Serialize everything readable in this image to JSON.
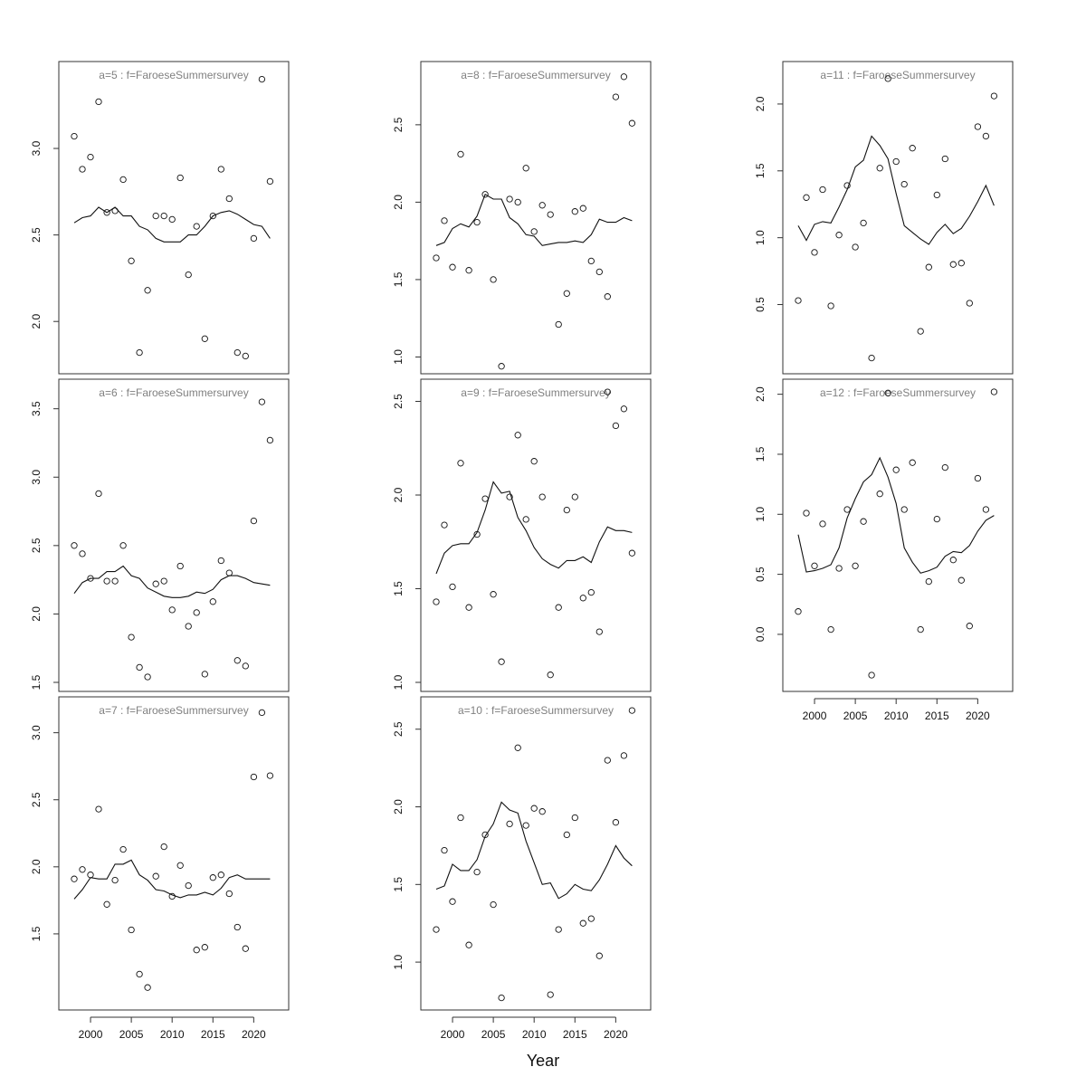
{
  "chart_data": {
    "type": "scatter",
    "xlabel": "Year",
    "x": [
      1998,
      1999,
      2000,
      2001,
      2002,
      2003,
      2004,
      2005,
      2006,
      2007,
      2008,
      2009,
      2010,
      2011,
      2012,
      2013,
      2014,
      2015,
      2016,
      2017,
      2018,
      2019,
      2020,
      2021,
      2022
    ],
    "xticks": [
      2000,
      2005,
      2010,
      2015,
      2020
    ],
    "panels": [
      {
        "title": "a=5  :  f=FaroeseSummersurvey",
        "ylim": [
          1.75,
          3.45
        ],
        "yticks": [
          "2.0",
          "2.5",
          "3.0"
        ],
        "observed": [
          3.07,
          2.88,
          2.95,
          3.27,
          2.63,
          2.64,
          2.82,
          2.35,
          1.82,
          2.18,
          2.61,
          2.61,
          2.59,
          2.83,
          2.27,
          2.55,
          1.9,
          2.61,
          2.88,
          2.71,
          1.82,
          1.8,
          2.48,
          3.4,
          2.81
        ],
        "fitted": [
          2.57,
          2.6,
          2.61,
          2.66,
          2.63,
          2.66,
          2.61,
          2.61,
          2.55,
          2.53,
          2.48,
          2.46,
          2.46,
          2.46,
          2.5,
          2.5,
          2.55,
          2.61,
          2.63,
          2.64,
          2.62,
          2.59,
          2.56,
          2.55,
          2.48
        ]
      },
      {
        "title": "a=6  :  f=FaroeseSummersurvey",
        "ylim": [
          1.5,
          3.65
        ],
        "yticks": [
          "1.5",
          "2.0",
          "2.5",
          "3.0",
          "3.5"
        ],
        "observed": [
          2.5,
          2.44,
          2.26,
          2.88,
          2.24,
          2.24,
          2.5,
          1.83,
          1.61,
          1.54,
          2.22,
          2.24,
          2.03,
          2.35,
          1.91,
          2.01,
          1.56,
          2.09,
          2.39,
          2.3,
          1.66,
          1.62,
          2.68,
          3.55,
          3.27
        ],
        "fitted": [
          2.15,
          2.23,
          2.26,
          2.26,
          2.31,
          2.31,
          2.35,
          2.28,
          2.26,
          2.19,
          2.16,
          2.13,
          2.12,
          2.12,
          2.13,
          2.16,
          2.15,
          2.18,
          2.25,
          2.28,
          2.28,
          2.26,
          2.23,
          2.22,
          2.21
        ]
      },
      {
        "title": "a=7  :  f=FaroeseSummersurvey",
        "ylim": [
          1.0,
          3.2
        ],
        "yticks": [
          "1.5",
          "2.0",
          "2.5",
          "3.0"
        ],
        "observed": [
          1.91,
          1.98,
          1.94,
          2.43,
          1.72,
          1.9,
          2.13,
          1.53,
          1.2,
          1.1,
          1.93,
          2.15,
          1.78,
          2.01,
          1.86,
          1.38,
          1.4,
          1.92,
          1.94,
          1.8,
          1.55,
          1.39,
          2.67,
          3.15,
          2.68
        ],
        "fitted": [
          1.76,
          1.83,
          1.92,
          1.91,
          1.91,
          2.02,
          2.02,
          2.05,
          1.94,
          1.9,
          1.83,
          1.82,
          1.79,
          1.77,
          1.79,
          1.79,
          1.81,
          1.79,
          1.84,
          1.92,
          1.94,
          1.91,
          1.91,
          1.91,
          1.91
        ]
      },
      {
        "title": "a=8  :  f=FaroeseSummersurvey",
        "ylim": [
          0.95,
          2.85
        ],
        "yticks": [
          "1.0",
          "1.5",
          "2.0",
          "2.5"
        ],
        "observed": [
          1.64,
          1.88,
          1.58,
          2.31,
          1.56,
          1.87,
          2.05,
          1.5,
          0.94,
          2.02,
          2.0,
          2.22,
          1.81,
          1.98,
          1.92,
          1.21,
          1.41,
          1.94,
          1.96,
          1.62,
          1.55,
          1.39,
          2.68,
          2.81,
          2.51
        ],
        "fitted": [
          1.72,
          1.74,
          1.83,
          1.86,
          1.84,
          1.91,
          2.05,
          2.02,
          2.02,
          1.9,
          1.86,
          1.79,
          1.78,
          1.72,
          1.73,
          1.74,
          1.74,
          1.75,
          1.74,
          1.79,
          1.89,
          1.87,
          1.87,
          1.9,
          1.88
        ]
      },
      {
        "title": "a=9  :  f=FaroeseSummersurvey",
        "ylim": [
          1.0,
          2.57
        ],
        "yticks": [
          "1.0",
          "1.5",
          "2.0",
          "2.5"
        ],
        "observed": [
          1.43,
          1.84,
          1.51,
          2.17,
          1.4,
          1.79,
          1.98,
          1.47,
          1.11,
          1.99,
          2.32,
          1.87,
          2.18,
          1.99,
          1.04,
          1.4,
          1.92,
          1.99,
          1.45,
          1.48,
          1.27,
          2.55,
          2.37,
          2.46,
          1.69
        ],
        "fitted": [
          1.58,
          1.69,
          1.73,
          1.74,
          1.74,
          1.8,
          1.92,
          2.07,
          2.01,
          2.02,
          1.88,
          1.81,
          1.72,
          1.66,
          1.63,
          1.61,
          1.65,
          1.65,
          1.67,
          1.64,
          1.75,
          1.83,
          1.81,
          1.81,
          1.8
        ]
      },
      {
        "title": "a=10  :  f=FaroeseSummersurvey",
        "ylim": [
          0.75,
          2.65
        ],
        "yticks": [
          "1.0",
          "1.5",
          "2.0",
          "2.5"
        ],
        "observed": [
          1.21,
          1.72,
          1.39,
          1.93,
          1.11,
          1.58,
          1.82,
          1.37,
          0.77,
          1.89,
          2.38,
          1.88,
          1.99,
          1.97,
          0.79,
          1.21,
          1.82,
          1.93,
          1.25,
          1.28,
          1.04,
          2.3,
          1.9,
          2.33,
          2.62
        ],
        "fitted": [
          1.47,
          1.49,
          1.63,
          1.59,
          1.59,
          1.66,
          1.81,
          1.89,
          2.03,
          1.98,
          1.96,
          1.78,
          1.64,
          1.5,
          1.51,
          1.41,
          1.44,
          1.5,
          1.47,
          1.46,
          1.53,
          1.63,
          1.75,
          1.67,
          1.62
        ]
      },
      {
        "title": "a=11  :  f=FaroeseSummersurvey",
        "ylim": [
          0.05,
          2.25
        ],
        "yticks": [
          "0.5",
          "1.0",
          "1.5",
          "2.0"
        ],
        "observed": [
          0.53,
          1.3,
          0.89,
          1.36,
          0.49,
          1.02,
          1.39,
          0.93,
          1.11,
          0.1,
          1.52,
          2.19,
          1.57,
          1.4,
          1.67,
          0.3,
          0.78,
          1.32,
          1.59,
          0.8,
          0.81,
          0.51,
          1.83,
          1.76,
          2.06
        ],
        "fitted": [
          1.09,
          0.98,
          1.1,
          1.12,
          1.11,
          1.23,
          1.36,
          1.53,
          1.58,
          1.76,
          1.69,
          1.59,
          1.33,
          1.09,
          1.04,
          0.99,
          0.95,
          1.04,
          1.1,
          1.03,
          1.07,
          1.16,
          1.27,
          1.39,
          1.24
        ]
      },
      {
        "title": "a=12  :  f=FaroeseSummersurvey",
        "ylim": [
          -0.4,
          2.05
        ],
        "yticks": [
          "0.0",
          "0.5",
          "1.0",
          "1.5",
          "2.0"
        ],
        "observed": [
          0.19,
          1.01,
          0.57,
          0.92,
          0.04,
          0.55,
          1.04,
          0.57,
          0.94,
          -0.34,
          1.17,
          2.01,
          1.37,
          1.04,
          1.43,
          0.04,
          0.44,
          0.96,
          1.39,
          0.62,
          0.45,
          0.07,
          1.3,
          1.04,
          2.02
        ],
        "fitted": [
          0.83,
          0.52,
          0.53,
          0.55,
          0.58,
          0.72,
          0.97,
          1.13,
          1.27,
          1.33,
          1.47,
          1.31,
          1.09,
          0.72,
          0.6,
          0.51,
          0.53,
          0.56,
          0.65,
          0.69,
          0.68,
          0.74,
          0.86,
          0.95,
          0.99
        ]
      }
    ]
  }
}
